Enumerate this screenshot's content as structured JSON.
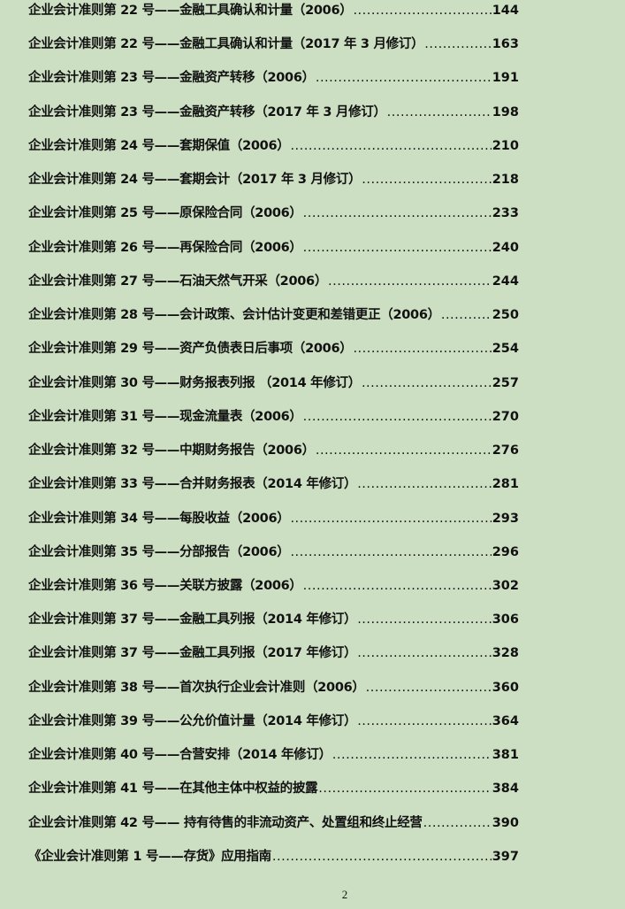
{
  "toc": [
    {
      "title": "企业会计准则第 22 号——金融工具确认和计量（2006）",
      "page": "144"
    },
    {
      "title": "企业会计准则第 22 号——金融工具确认和计量（2017 年 3 月修订）",
      "page": "163"
    },
    {
      "title": "企业会计准则第 23 号——金融资产转移（2006）",
      "page": "191"
    },
    {
      "title": "企业会计准则第 23 号——金融资产转移（2017 年 3 月修订）",
      "page": "198"
    },
    {
      "title": "企业会计准则第 24 号——套期保值（2006）",
      "page": "210"
    },
    {
      "title": "企业会计准则第 24 号——套期会计（2017 年 3 月修订）",
      "page": "218"
    },
    {
      "title": "企业会计准则第 25 号——原保险合同（2006）",
      "page": "233"
    },
    {
      "title": "企业会计准则第 26 号——再保险合同（2006）",
      "page": "240"
    },
    {
      "title": "企业会计准则第 27 号——石油天然气开采（2006）",
      "page": "244"
    },
    {
      "title": "企业会计准则第 28 号——会计政策、会计估计变更和差错更正（2006）",
      "page": "250"
    },
    {
      "title": "企业会计准则第 29 号——资产负债表日后事项（2006）",
      "page": "254"
    },
    {
      "title": "企业会计准则第 30 号——财务报表列报 （2014 年修订）",
      "page": "257"
    },
    {
      "title": "企业会计准则第 31 号——现金流量表（2006）",
      "page": "270"
    },
    {
      "title": "企业会计准则第 32 号——中期财务报告（2006）",
      "page": "276"
    },
    {
      "title": "企业会计准则第 33 号——合并财务报表（2014 年修订）",
      "page": "281"
    },
    {
      "title": "企业会计准则第 34 号——每股收益（2006）",
      "page": "293"
    },
    {
      "title": "企业会计准则第 35 号——分部报告（2006）",
      "page": "296"
    },
    {
      "title": "企业会计准则第 36 号——关联方披露（2006）",
      "page": "302"
    },
    {
      "title": "企业会计准则第 37 号——金融工具列报（2014 年修订）",
      "page": "306"
    },
    {
      "title": "企业会计准则第 37 号——金融工具列报（2017 年修订）",
      "page": "328"
    },
    {
      "title": "企业会计准则第 38 号——首次执行企业会计准则（2006）",
      "page": "360"
    },
    {
      "title": "企业会计准则第 39 号——公允价值计量（2014 年修订）",
      "page": "364"
    },
    {
      "title": "企业会计准则第 40 号——合营安排（2014 年修订）",
      "page": "381"
    },
    {
      "title": "企业会计准则第 41 号——在其他主体中权益的披露",
      "page": "384"
    },
    {
      "title": "企业会计准则第  42  号—— 持有待售的非流动资产、处置组和终止经营",
      "page": "390"
    },
    {
      "title": "《企业会计准则第 1 号——存货》应用指南",
      "page": "397"
    }
  ],
  "page_number": "2"
}
